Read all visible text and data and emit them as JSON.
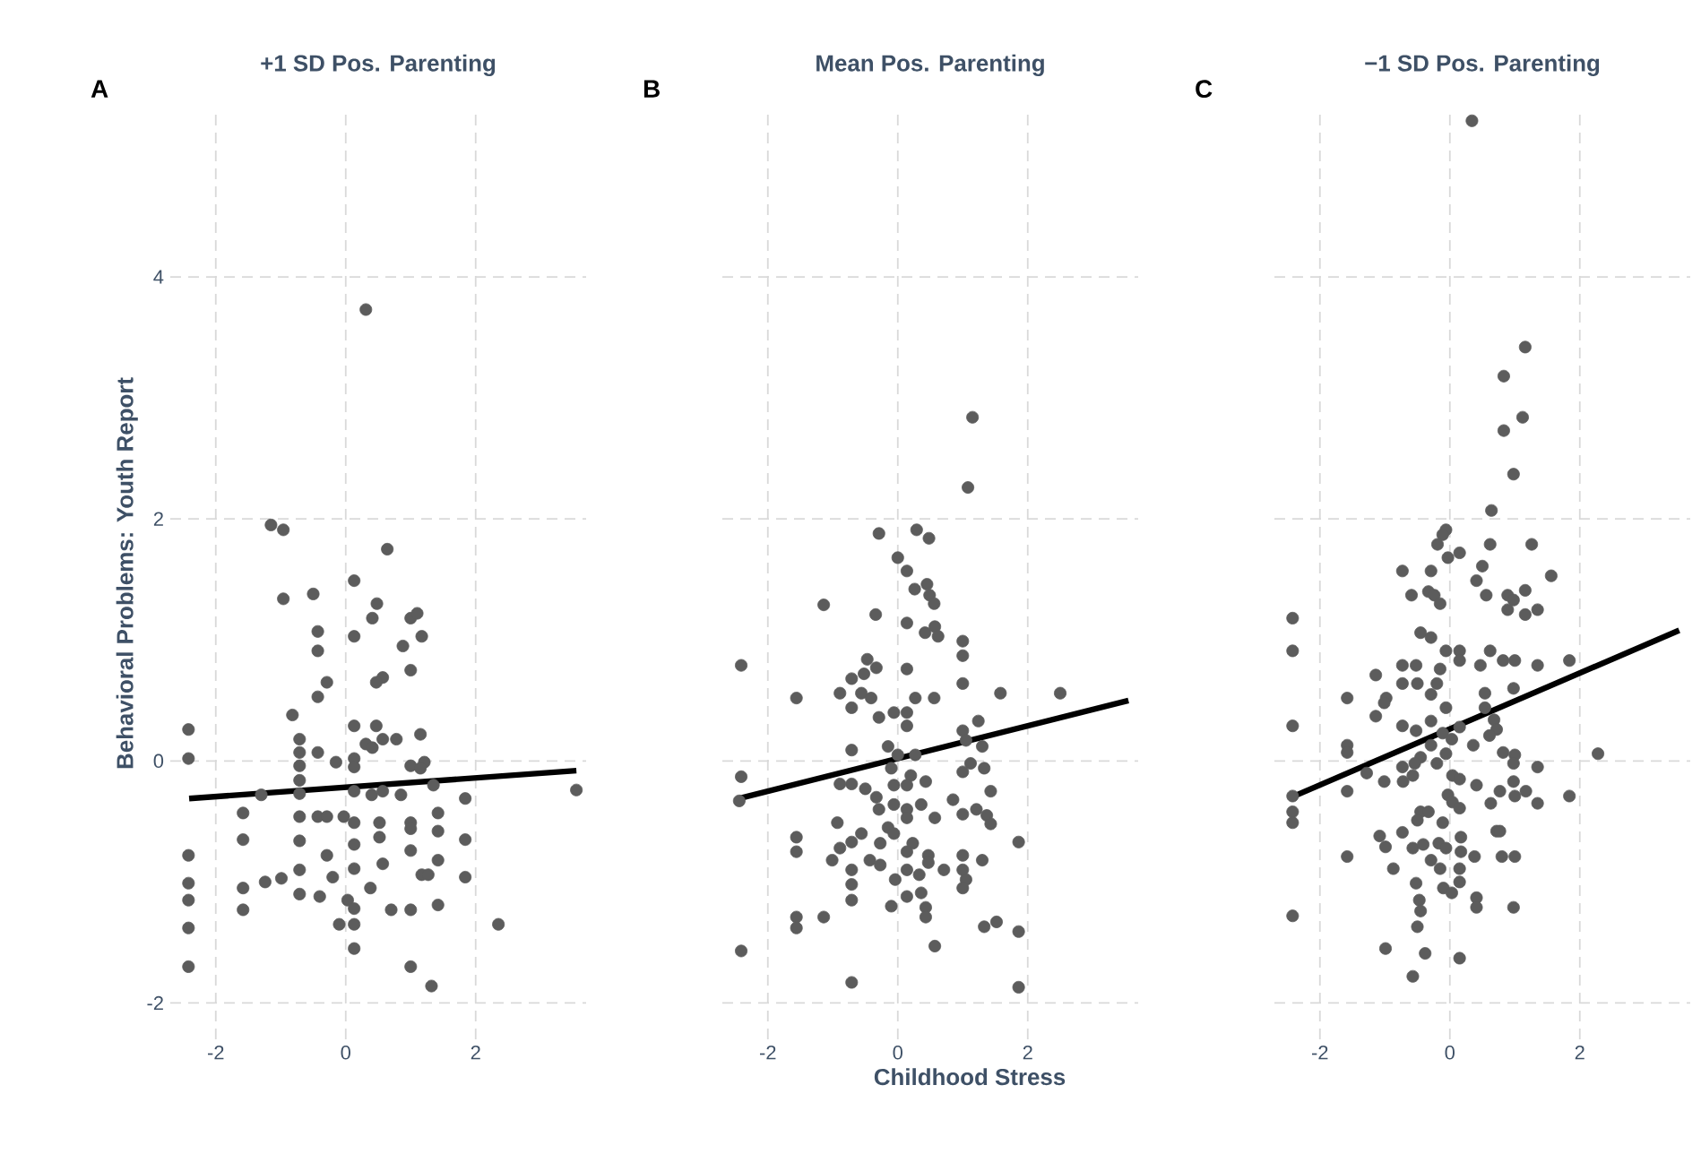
{
  "chart_data": [
    {
      "type": "scatter",
      "title": "+1 SD Pos. Parenting",
      "ylabel": "Behavioral Problems: Youth Report",
      "annotations": [
        "A"
      ],
      "xlim": [
        -2.7,
        3.7
      ],
      "ylim": [
        -2.3,
        5.4
      ],
      "xticks": [
        -2,
        0,
        2
      ],
      "yticks": [
        -2,
        0,
        2,
        4
      ],
      "grid": true,
      "series": [
        {
          "color": "#5c5c5c",
          "marker": "circle",
          "x": [
            0.31,
            -1.15,
            -0.96,
            0.64,
            0.13,
            -0.96,
            -0.5,
            0.48,
            0.41,
            1.0,
            1.1,
            -0.43,
            0.13,
            1.17,
            -0.43,
            0.88,
            1.0,
            0.57,
            0.47,
            -0.29,
            -0.43,
            -0.82,
            -2.42,
            -2.42,
            -0.71,
            0.13,
            0.47,
            0.31,
            0.57,
            0.78,
            1.15,
            0.41,
            -0.71,
            -0.43,
            -0.15,
            0.13,
            0.13,
            1.0,
            1.21,
            1.15,
            -0.71,
            -0.71,
            -1.3,
            -0.71,
            0.13,
            0.4,
            0.57,
            0.85,
            1.35,
            1.84,
            3.55,
            -1.58,
            -0.71,
            -0.43,
            -0.29,
            -0.03,
            0.13,
            0.52,
            1.0,
            1.0,
            1.42,
            -1.58,
            -0.71,
            0.52,
            1.42,
            1.84,
            0.13,
            1.0,
            -2.42,
            -0.29,
            0.57,
            0.13,
            -0.71,
            1.42,
            1.17,
            1.27,
            1.84,
            -2.42,
            -1.58,
            -1.24,
            -0.99,
            -0.2,
            0.38,
            -2.42,
            -1.58,
            -0.71,
            -0.4,
            0.03,
            0.13,
            0.7,
            1.0,
            1.42,
            2.35,
            -2.42,
            -0.1,
            0.13,
            0.13,
            -2.42,
            1.0,
            1.32
          ],
          "values": [
            3.73,
            1.95,
            1.91,
            1.75,
            1.49,
            1.34,
            1.38,
            1.3,
            1.18,
            1.18,
            1.22,
            1.07,
            1.03,
            1.03,
            0.91,
            0.95,
            0.75,
            0.69,
            0.65,
            0.65,
            0.53,
            0.38,
            0.26,
            0.02,
            0.18,
            0.29,
            0.29,
            0.14,
            0.18,
            0.18,
            0.22,
            0.11,
            0.07,
            0.07,
            -0.01,
            0.02,
            -0.05,
            -0.04,
            -0.01,
            -0.06,
            -0.04,
            -0.16,
            -0.28,
            -0.27,
            -0.25,
            -0.28,
            -0.25,
            -0.28,
            -0.2,
            -0.31,
            -0.24,
            -0.43,
            -0.46,
            -0.46,
            -0.46,
            -0.46,
            -0.51,
            -0.51,
            -0.51,
            -0.56,
            -0.43,
            -0.65,
            -0.66,
            -0.63,
            -0.58,
            -0.65,
            -0.69,
            -0.74,
            -0.78,
            -0.78,
            -0.85,
            -0.89,
            -0.9,
            -0.82,
            -0.94,
            -0.94,
            -0.96,
            -1.01,
            -1.05,
            -1.0,
            -0.97,
            -0.96,
            -1.05,
            -1.15,
            -1.23,
            -1.1,
            -1.12,
            -1.15,
            -1.22,
            -1.23,
            -1.23,
            -1.19,
            -1.35,
            -1.38,
            -1.35,
            -1.35,
            -1.55,
            -1.7,
            -1.7,
            -1.86
          ]
        },
        {
          "type": "line",
          "marker": "none",
          "color": "#000000",
          "x": [
            -2.41,
            3.55
          ],
          "values": [
            -0.31,
            -0.08
          ]
        }
      ]
    },
    {
      "type": "scatter",
      "title": "Mean Pos. Parenting",
      "xlabel": "Childhood Stress",
      "annotations": [
        "B"
      ],
      "xlim": [
        -2.7,
        3.7
      ],
      "ylim": [
        -2.3,
        5.4
      ],
      "xticks": [
        -2,
        0,
        2
      ],
      "yticks": [
        -2,
        0,
        2,
        4
      ],
      "grid": true,
      "tick_labels": "x",
      "series": [
        {
          "color": "#5c5c5c",
          "marker": "circle",
          "x": [
            1.15,
            1.08,
            -0.29,
            0.29,
            0.48,
            0,
            0.14,
            0.26,
            0.45,
            0.49,
            0.56,
            -1.14,
            -0.34,
            0.14,
            0.57,
            0.42,
            0.62,
            1.0,
            1.0,
            -2.41,
            -0.47,
            -0.33,
            -0.52,
            0.14,
            -0.71,
            1.0,
            -1.56,
            -0.89,
            -0.56,
            -0.41,
            -0.71,
            0.27,
            0.56,
            1.58,
            2.5,
            -0.29,
            -0.06,
            0.14,
            0.14,
            1.24,
            1.0,
            -0.71,
            -0.15,
            0,
            0.27,
            1.05,
            1.3,
            1.12,
            1.33,
            1.0,
            -0.1,
            0.2,
            -2.41,
            -0.89,
            -0.71,
            -0.5,
            -0.06,
            0.14,
            0.43,
            1.43,
            -2.44,
            -0.33,
            -0.29,
            -0.06,
            0.14,
            0.36,
            0.85,
            0.14,
            0.57,
            1.0,
            1.21,
            1.37,
            1.43,
            -0.93,
            -0.15,
            -0.06,
            -0.56,
            -1.56,
            -1.56,
            1.86,
            -0.71,
            -0.89,
            -0.27,
            0.23,
            0.14,
            -1.01,
            -0.43,
            -0.27,
            0.47,
            0.47,
            1.0,
            1.3,
            -0.71,
            0.14,
            0.33,
            0.71,
            1.0,
            1.05,
            1.0,
            -0.04,
            -0.71,
            -0.71,
            0.14,
            0.36,
            -0.1,
            0.43,
            0.43,
            -1.56,
            -1.56,
            -1.14,
            1.33,
            1.52,
            1.86,
            -2.41,
            0.57,
            -0.71,
            1.86
          ],
          "values": [
            2.84,
            2.26,
            1.88,
            1.91,
            1.84,
            1.68,
            1.57,
            1.42,
            1.46,
            1.37,
            1.3,
            1.29,
            1.21,
            1.14,
            1.11,
            1.06,
            1.03,
            0.99,
            0.87,
            0.79,
            0.84,
            0.77,
            0.72,
            0.76,
            0.68,
            0.64,
            0.52,
            0.56,
            0.56,
            0.52,
            0.44,
            0.52,
            0.52,
            0.56,
            0.56,
            0.36,
            0.4,
            0.4,
            0.29,
            0.33,
            0.25,
            0.09,
            0.12,
            0.05,
            0.05,
            0.17,
            0.12,
            -0.02,
            -0.06,
            -0.09,
            -0.06,
            -0.12,
            -0.13,
            -0.19,
            -0.19,
            -0.23,
            -0.2,
            -0.2,
            -0.17,
            -0.25,
            -0.33,
            -0.3,
            -0.4,
            -0.36,
            -0.4,
            -0.36,
            -0.32,
            -0.47,
            -0.47,
            -0.44,
            -0.4,
            -0.45,
            -0.52,
            -0.51,
            -0.55,
            -0.6,
            -0.6,
            -0.63,
            -0.75,
            -0.67,
            -0.67,
            -0.72,
            -0.68,
            -0.68,
            -0.75,
            -0.82,
            -0.82,
            -0.86,
            -0.78,
            -0.84,
            -0.78,
            -0.82,
            -0.9,
            -0.9,
            -0.94,
            -0.9,
            -0.9,
            -0.98,
            -1.05,
            -0.98,
            -1.02,
            -1.15,
            -1.12,
            -1.09,
            -1.2,
            -1.21,
            -1.29,
            -1.29,
            -1.38,
            -1.29,
            -1.37,
            -1.33,
            -1.41,
            -1.57,
            -1.53,
            -1.83,
            -1.87
          ]
        },
        {
          "type": "line",
          "marker": "none",
          "color": "#000000",
          "x": [
            -2.44,
            3.55
          ],
          "values": [
            -0.31,
            0.5
          ]
        }
      ]
    },
    {
      "type": "scatter",
      "title": "−1 SD Pos. Parenting",
      "annotations": [
        "C"
      ],
      "xlim": [
        -2.7,
        3.7
      ],
      "ylim": [
        -2.3,
        5.4
      ],
      "xticks": [
        -2,
        0,
        2
      ],
      "yticks": [
        -2,
        0,
        2,
        4
      ],
      "grid": true,
      "tick_labels": "x",
      "series": [
        {
          "color": "#5c5c5c",
          "marker": "circle",
          "x": [
            0.34,
            1.16,
            0.83,
            1.12,
            0.83,
            0.98,
            0.64,
            -0.06,
            -0.11,
            -0.19,
            0.15,
            -0.03,
            0.62,
            1.26,
            -0.73,
            -0.29,
            0.5,
            0.41,
            1.56,
            -0.59,
            -0.33,
            -0.24,
            -0.15,
            0.56,
            0.89,
            0.98,
            1.16,
            0.89,
            1.35,
            1.16,
            -2.42,
            -2.42,
            -0.45,
            -0.29,
            -0.06,
            0.15,
            0.15,
            0.62,
            0.82,
            1.0,
            0.47,
            1.35,
            1.84,
            -0.73,
            -0.52,
            -0.15,
            -1.14,
            -0.73,
            -0.5,
            -0.2,
            -0.29,
            -1.58,
            -0.98,
            -1.01,
            0.98,
            0.54,
            -0.06,
            0.54,
            -1.14,
            -2.42,
            -0.73,
            -0.29,
            -0.52,
            0.15,
            0.68,
            0.72,
            0.61,
            -0.11,
            0.03,
            0.36,
            -1.58,
            -1.58,
            -0.29,
            -0.45,
            -0.06,
            0.82,
            1.0,
            0.98,
            1.35,
            2.28,
            -0.73,
            -0.54,
            -0.2,
            -1.28,
            0.04,
            0.15,
            -0.57,
            -0.72,
            -1.01,
            -1.58,
            -2.42,
            0.41,
            0.77,
            0.98,
            1.0,
            1.17,
            1.84,
            1.35,
            -0.03,
            0.04,
            0.15,
            0.63,
            -2.42,
            -2.42,
            -0.45,
            -0.33,
            -0.5,
            -0.11,
            -0.73,
            0.72,
            0.77,
            -1.08,
            -0.99,
            -0.57,
            -0.41,
            -0.17,
            -0.06,
            0.17,
            0.17,
            0.38,
            0.8,
            1.0,
            -1.58,
            -0.87,
            -0.29,
            -0.15,
            0.15,
            0.15,
            -0.52,
            -0.1,
            0.03,
            -2.42,
            -0.47,
            -0.45,
            -0.5,
            0.41,
            0.41,
            0.98,
            -0.99,
            -0.38,
            0.15,
            -0.57
          ],
          "values": [
            5.29,
            3.42,
            3.18,
            2.84,
            2.73,
            2.37,
            2.07,
            1.91,
            1.87,
            1.79,
            1.72,
            1.68,
            1.79,
            1.79,
            1.57,
            1.57,
            1.61,
            1.49,
            1.53,
            1.37,
            1.4,
            1.37,
            1.3,
            1.37,
            1.37,
            1.33,
            1.41,
            1.25,
            1.25,
            1.21,
            1.18,
            0.91,
            1.06,
            1.02,
            0.91,
            0.91,
            0.83,
            0.91,
            0.83,
            0.83,
            0.79,
            0.79,
            0.83,
            0.79,
            0.79,
            0.76,
            0.71,
            0.64,
            0.64,
            0.64,
            0.55,
            0.52,
            0.52,
            0.48,
            0.6,
            0.56,
            0.44,
            0.44,
            0.37,
            0.29,
            0.29,
            0.33,
            0.25,
            0.28,
            0.34,
            0.26,
            0.21,
            0.23,
            0.18,
            0.13,
            0.13,
            0.07,
            0.13,
            0.03,
            0.06,
            0.07,
            0.05,
            -0.02,
            -0.05,
            0.06,
            -0.05,
            -0.02,
            -0.02,
            -0.1,
            -0.12,
            -0.15,
            -0.12,
            -0.17,
            -0.17,
            -0.25,
            -0.29,
            -0.2,
            -0.25,
            -0.17,
            -0.29,
            -0.25,
            -0.29,
            -0.35,
            -0.28,
            -0.34,
            -0.39,
            -0.35,
            -0.42,
            -0.51,
            -0.42,
            -0.42,
            -0.49,
            -0.51,
            -0.59,
            -0.58,
            -0.58,
            -0.62,
            -0.71,
            -0.72,
            -0.69,
            -0.68,
            -0.72,
            -0.63,
            -0.75,
            -0.79,
            -0.79,
            -0.79,
            -0.79,
            -0.89,
            -0.82,
            -0.89,
            -0.89,
            -1.0,
            -1.01,
            -1.05,
            -1.09,
            -1.28,
            -1.15,
            -1.24,
            -1.37,
            -1.13,
            -1.21,
            -1.21,
            -1.55,
            -1.59,
            -1.63,
            -1.78
          ]
        },
        {
          "type": "line",
          "marker": "none",
          "color": "#000000",
          "x": [
            -2.44,
            3.53
          ],
          "values": [
            -0.3,
            1.08
          ]
        }
      ]
    }
  ]
}
